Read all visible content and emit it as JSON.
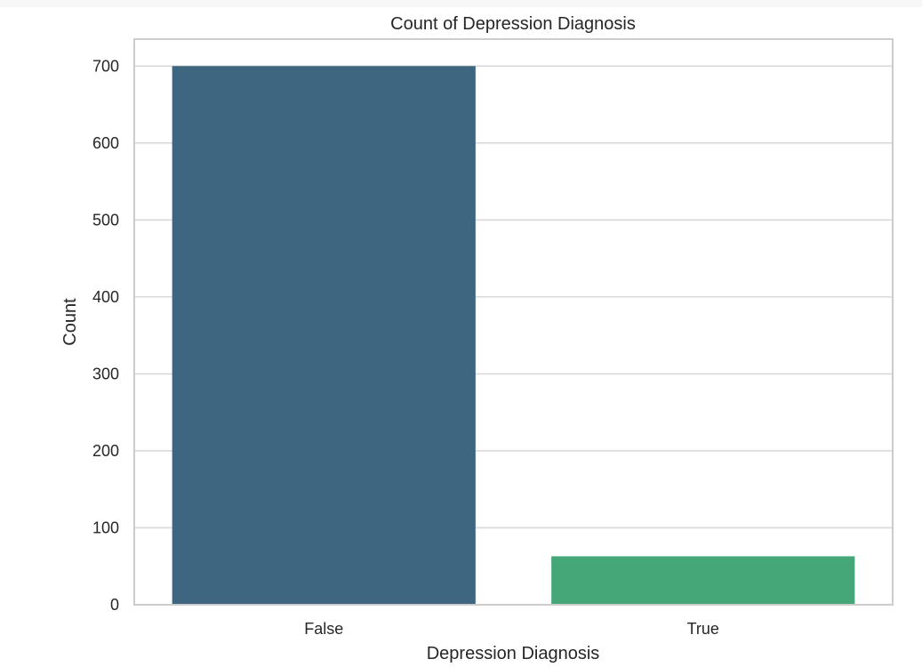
{
  "chart_data": {
    "type": "bar",
    "title": "Count of Depression Diagnosis",
    "xlabel": "Depression Diagnosis",
    "ylabel": "Count",
    "categories": [
      "False",
      "True"
    ],
    "values": [
      700,
      63
    ],
    "colors": [
      "#3e6680",
      "#45a778"
    ],
    "ylim": [
      0,
      735
    ],
    "yticks": [
      0,
      100,
      200,
      300,
      400,
      500,
      600,
      700
    ],
    "grid": "horizontal",
    "legend": "none"
  }
}
